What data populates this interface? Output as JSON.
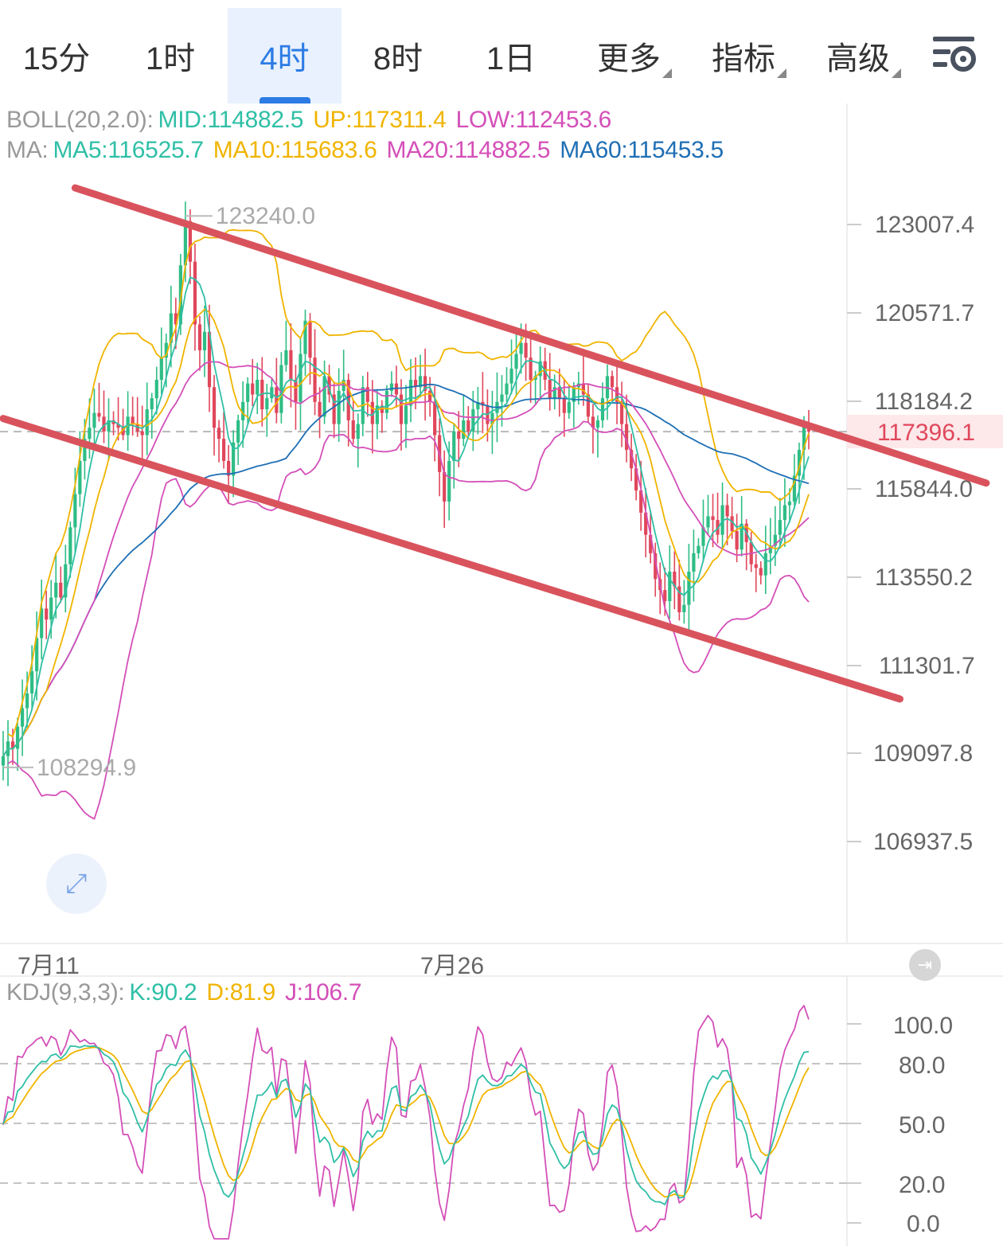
{
  "tabs": [
    {
      "label": "15分",
      "active": false
    },
    {
      "label": "1时",
      "active": false
    },
    {
      "label": "4时",
      "active": true
    },
    {
      "label": "8时",
      "active": false
    },
    {
      "label": "1日",
      "active": false
    },
    {
      "label": "更多",
      "active": false,
      "dropdown": true
    },
    {
      "label": "指标",
      "active": false,
      "dropdown": true
    },
    {
      "label": "高级",
      "active": false,
      "dropdown": true
    }
  ],
  "settings_icon": "chart-settings-icon",
  "boll": {
    "label": "BOLL(20,2.0):",
    "mid": "MID:114882.5",
    "up": "UP:117311.4",
    "low": "LOW:112453.6"
  },
  "ma": {
    "label": "MA:",
    "ma5": "MA5:116525.7",
    "ma10": "MA10:115683.6",
    "ma20": "MA20:114882.5",
    "ma60": "MA60:115453.5"
  },
  "kdj": {
    "label": "KDJ(9,3,3):",
    "k": "K:90.2",
    "d": "D:81.9",
    "j": "J:106.7"
  },
  "high_marker": "123240.0",
  "low_marker": "108294.9",
  "current_price": "117396.1",
  "dates": [
    "7月11",
    "7月26"
  ],
  "colors": {
    "accent": "#2c7be5",
    "up": "#2ebd85",
    "down": "#e0475b",
    "ma5": "#2fbfa6",
    "ma10": "#f0b400",
    "ma20": "#d44fb8",
    "ma60": "#1f6fb5",
    "trend": "#d9535d",
    "price_tag_bg": "#fde8ea"
  },
  "chart_data": {
    "type": "candlestick",
    "timeframe": "4时",
    "price_axis": {
      "ticks": [
        "123007.4",
        "120571.7",
        "118184.2",
        "115844.0",
        "113550.2",
        "111301.7",
        "109097.8",
        "106937.5"
      ],
      "range": [
        105300,
        124300
      ]
    },
    "kdj_axis": {
      "ticks": [
        "100.0",
        "80.0",
        "50.0",
        "20.0",
        "0.0"
      ],
      "range": [
        -5,
        120
      ],
      "dashed_levels": [
        80,
        50,
        20
      ]
    },
    "x_labels": [
      {
        "index": 5,
        "label": "7月11"
      },
      {
        "index": 90,
        "label": "7月26"
      }
    ],
    "close": [
      108600,
      109000,
      108800,
      109400,
      109900,
      110300,
      110900,
      111800,
      112600,
      112300,
      112900,
      113300,
      112900,
      113800,
      114800,
      115700,
      116600,
      117200,
      117500,
      117900,
      117800,
      117400,
      117700,
      117600,
      117500,
      117300,
      117800,
      117600,
      117400,
      117300,
      118000,
      118300,
      118800,
      119400,
      119800,
      120600,
      120300,
      121900,
      123100,
      122000,
      120300,
      119600,
      120100,
      118600,
      117500,
      117200,
      116600,
      116200,
      117100,
      117700,
      118200,
      118700,
      118400,
      118800,
      118000,
      118300,
      118600,
      117900,
      119200,
      119600,
      118800,
      118200,
      119500,
      120400,
      119400,
      118200,
      117800,
      118900,
      118400,
      117600,
      118500,
      118800,
      117700,
      117200,
      117600,
      118600,
      118200,
      117600,
      118100,
      117900,
      118500,
      118700,
      118400,
      117600,
      118100,
      118800,
      118600,
      118900,
      118500,
      118200,
      117300,
      116300,
      115500,
      116600,
      117400,
      117200,
      117700,
      117400,
      118000,
      118200,
      118100,
      117600,
      117900,
      118200,
      118400,
      118700,
      119100,
      119500,
      119800,
      119400,
      118800,
      118900,
      119300,
      118800,
      118300,
      118600,
      118300,
      117900,
      118200,
      118600,
      118700,
      118400,
      117800,
      117500,
      117700,
      118300,
      118900,
      118600,
      118200,
      117600,
      116900,
      116400,
      115800,
      115200,
      114600,
      114100,
      113400,
      113100,
      112800,
      113600,
      113200,
      112500,
      112700,
      113600,
      114100,
      114300,
      114800,
      115100,
      115000,
      114600,
      115400,
      115100,
      114700,
      114200,
      114900,
      114400,
      113800,
      113700,
      113500,
      114100,
      114300,
      114600,
      115000,
      115400,
      115500,
      116200,
      116900,
      117600,
      117396
    ],
    "series": [
      {
        "name": "MA5",
        "last": 116525.7
      },
      {
        "name": "MA10",
        "last": 115683.6
      },
      {
        "name": "MA20",
        "last": 114882.5
      },
      {
        "name": "MA60",
        "last": 115453.5
      },
      {
        "name": "UP",
        "last": 117311.4
      },
      {
        "name": "LOW",
        "last": 112453.6
      },
      {
        "name": "K",
        "last": 90.2
      },
      {
        "name": "D",
        "last": 81.9
      },
      {
        "name": "J",
        "last": 106.7
      }
    ],
    "trend_lines": [
      {
        "name": "upper-channel",
        "from": {
          "index": 15,
          "price": 124000
        },
        "to": {
          "index": 205,
          "price": 116000
        }
      },
      {
        "name": "lower-channel",
        "from": {
          "index": 0,
          "price": 117750
        },
        "to": {
          "index": 187,
          "price": 110150
        }
      }
    ]
  }
}
